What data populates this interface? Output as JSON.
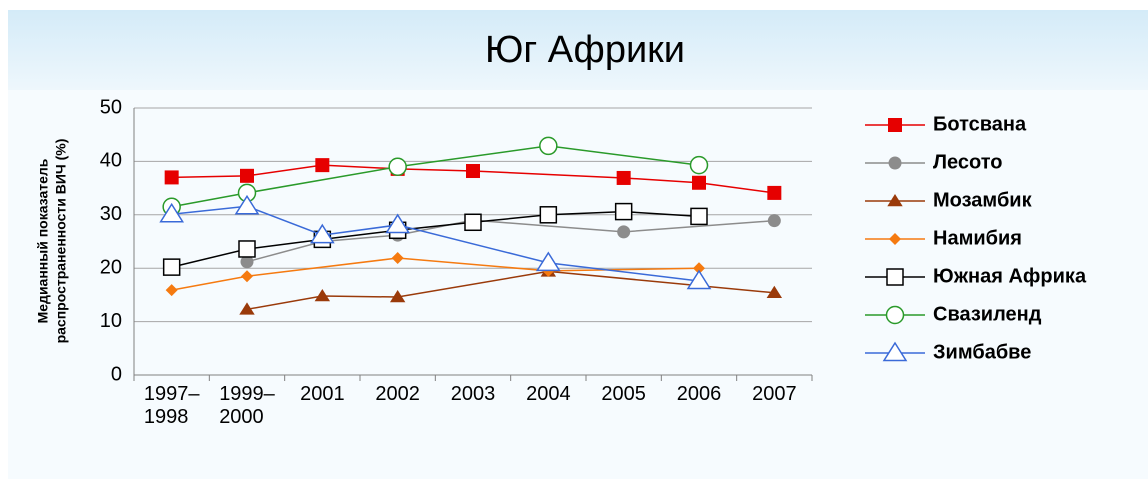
{
  "chart_data": {
    "type": "line",
    "title": "Юг Африки",
    "ylabel": [
      "Медианный показатель",
      "распространенности ВИЧ (%)"
    ],
    "categories": [
      "1997–\n1998",
      "1999–\n2000",
      "2001",
      "2002",
      "2003",
      "2004",
      "2005",
      "2006",
      "2007"
    ],
    "ylim": [
      0,
      50
    ],
    "yticks": [
      0,
      10,
      20,
      30,
      40,
      50
    ],
    "grid": true,
    "connect_gaps": true,
    "legend": "right",
    "series": [
      {
        "name": "Ботсвана",
        "color": "#e60000",
        "marker": "square",
        "values": [
          37,
          37.3,
          39.3,
          38.6,
          38.2,
          null,
          36.9,
          36,
          34.1
        ]
      },
      {
        "name": "Лесото",
        "color": "#8c8c8c",
        "marker": "circle",
        "values": [
          null,
          21.2,
          25,
          26.2,
          29,
          null,
          26.8,
          null,
          28.9
        ]
      },
      {
        "name": "Мозамбик",
        "color": "#9a3a0a",
        "marker": "triangle",
        "values": [
          null,
          12.3,
          14.8,
          14.6,
          null,
          19.4,
          null,
          null,
          15.4
        ]
      },
      {
        "name": "Намибия",
        "color": "#f57a10",
        "marker": "diamond",
        "values": [
          15.9,
          18.5,
          null,
          21.9,
          null,
          19.5,
          null,
          20,
          null
        ]
      },
      {
        "name": "Южная Африка",
        "color": "#000000",
        "marker": "open-square",
        "values": [
          20.2,
          23.6,
          25.4,
          27.1,
          28.6,
          30,
          30.6,
          29.7,
          null
        ]
      },
      {
        "name": "Свазиленд",
        "color": "#2a9a2a",
        "marker": "open-circle",
        "values": [
          31.5,
          34.1,
          null,
          39,
          null,
          42.9,
          null,
          39.3,
          null
        ]
      },
      {
        "name": "Зимбабве",
        "color": "#3a6ad8",
        "marker": "open-triangle",
        "values": [
          30.1,
          31.6,
          26.2,
          28.1,
          null,
          21,
          null,
          17.6,
          null
        ]
      }
    ]
  }
}
